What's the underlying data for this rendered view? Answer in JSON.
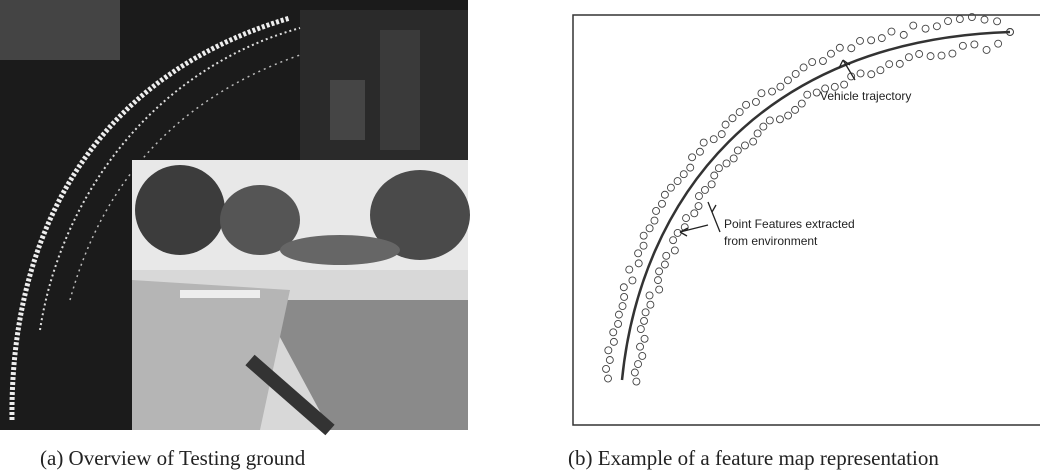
{
  "figure": {
    "panel_a": {
      "caption": "(a) Overview of Testing ground"
    },
    "panel_b": {
      "caption": "(b) Example of a feature map representation",
      "annotations": {
        "trajectory": "Vehicle trajectory",
        "features": [
          "Point Features extracted",
          "from environment"
        ]
      }
    }
  }
}
